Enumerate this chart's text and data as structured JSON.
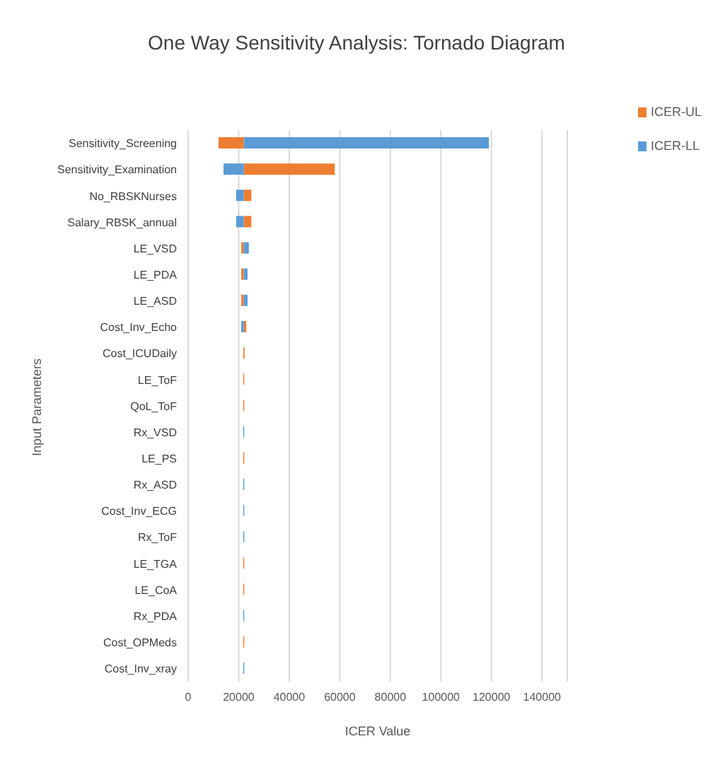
{
  "chart_data": {
    "type": "bar",
    "orientation": "horizontal",
    "title": "One Way Sensitivity Analysis: Tornado Diagram",
    "xlabel": "ICER Value",
    "ylabel": "Input Parameters",
    "categories": [
      "Sensitivity_Screening",
      "Sensitivity_Examination",
      "No_RBSKNurses",
      "Salary_RBSK_annual",
      "LE_VSD",
      "LE_PDA",
      "LE_ASD",
      "Cost_Inv_Echo",
      "Cost_ICUDaily",
      "LE_ToF",
      "QoL_ToF",
      "Rx_VSD",
      "LE_PS",
      "Rx_ASD",
      "Cost_Inv_ECG",
      "Rx_ToF",
      "LE_TGA",
      "LE_CoA",
      "Rx_PDA",
      "Cost_OPMeds",
      "Cost_Inv_xray"
    ],
    "series": [
      {
        "name": "ICER-UL",
        "color": "#ed7d31",
        "base": [
          12000,
          22000,
          22000,
          22000,
          21000,
          21000,
          21000,
          22000,
          21800,
          21800,
          21800,
          null,
          21800,
          null,
          null,
          null,
          21800,
          21800,
          null,
          21800,
          null
        ],
        "values": [
          10000,
          36000,
          3000,
          3000,
          1000,
          1000,
          1000,
          1000,
          500,
          400,
          400,
          null,
          400,
          null,
          null,
          null,
          400,
          400,
          null,
          400,
          null
        ]
      },
      {
        "name": "ICER-LL",
        "color": "#5b9bd5",
        "base": [
          22000,
          14000,
          19000,
          19000,
          22000,
          22000,
          22000,
          21000,
          null,
          null,
          null,
          21800,
          null,
          21800,
          21800,
          21800,
          null,
          null,
          21800,
          null,
          21800
        ],
        "values": [
          97000,
          8000,
          3000,
          3000,
          2000,
          1500,
          1500,
          1000,
          null,
          null,
          null,
          400,
          null,
          400,
          400,
          400,
          null,
          null,
          400,
          null,
          400
        ]
      }
    ],
    "xlim": [
      0,
      150000
    ],
    "xticks": [
      0,
      20000,
      40000,
      60000,
      80000,
      100000,
      120000,
      140000
    ],
    "grid": "x",
    "legend": "top right"
  }
}
